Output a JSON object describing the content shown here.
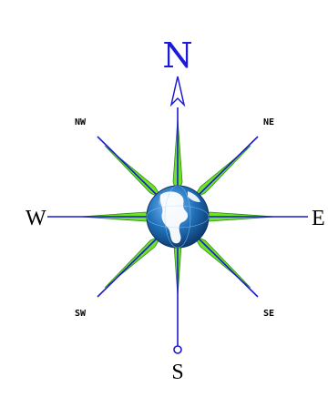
{
  "compass": {
    "north": "N",
    "south": "S",
    "east": "E",
    "west": "W",
    "northeast": "NE",
    "northwest": "NW",
    "southeast": "SE",
    "southwest": "SW"
  },
  "icons": {
    "center": "globe-icon",
    "north": "north-arrow-icon",
    "south": "south-marker-icon"
  },
  "colors": {
    "background": "#ffffff",
    "needle_line": "#1a1ad8",
    "spike_fill": "#6ee12a",
    "spike_dark": "#2e8b12",
    "north_letter": "#1a1ad8",
    "cardinal_letter": "#000000",
    "globe_ocean": "#1f6fb8",
    "globe_land": "#ffffff"
  }
}
